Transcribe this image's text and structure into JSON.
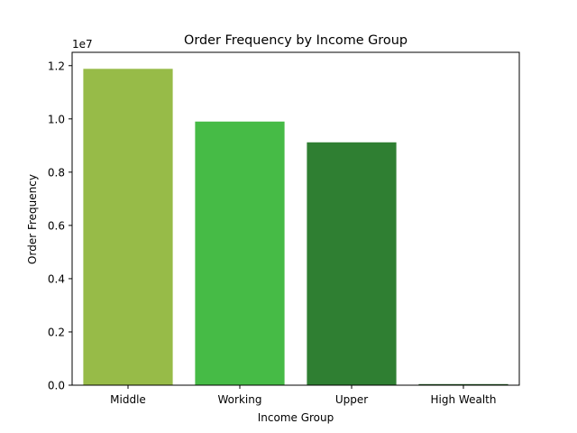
{
  "chart_data": {
    "type": "bar",
    "title": "Order Frequency by Income Group",
    "xlabel": "Income Group",
    "ylabel": "Order Frequency",
    "offset_text": "1e7",
    "categories": [
      "Middle",
      "Working",
      "Upper",
      "High Wealth"
    ],
    "values": [
      11880000,
      9900000,
      9120000,
      40000
    ],
    "colors": [
      "#97bb48",
      "#46bb46",
      "#2f7f32",
      "#1d5a1d"
    ],
    "ylim": [
      0,
      12500000
    ],
    "yticks": [
      0,
      2000000,
      4000000,
      6000000,
      8000000,
      10000000,
      12000000
    ],
    "ytick_labels": [
      "0.0",
      "0.2",
      "0.4",
      "0.6",
      "0.8",
      "1.0",
      "1.2"
    ],
    "grid": false,
    "legend": "none"
  }
}
